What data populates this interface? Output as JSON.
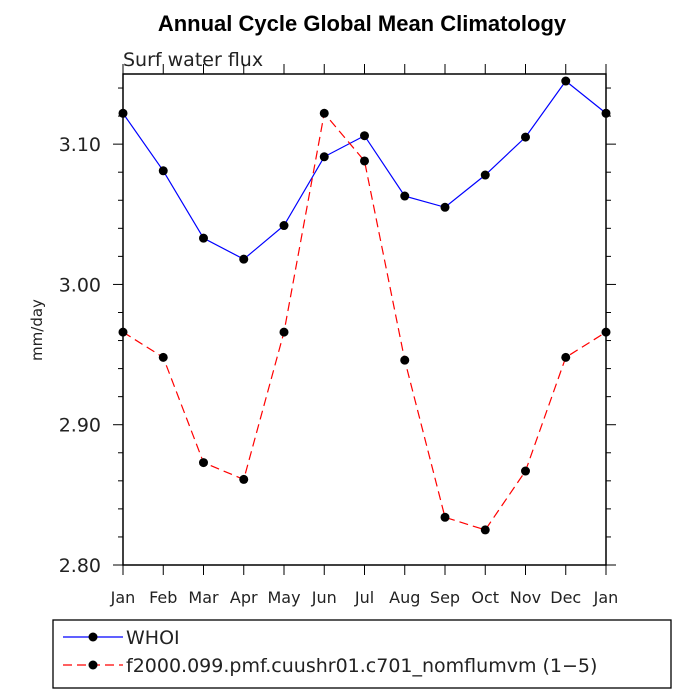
{
  "chart_data": {
    "type": "line",
    "title": "Annual Cycle Global Mean Climatology",
    "subtitle": "Surf water flux",
    "xlabel": "",
    "ylabel": "mm/day",
    "categories": [
      "Jan",
      "Feb",
      "Mar",
      "Apr",
      "May",
      "Jun",
      "Jul",
      "Aug",
      "Sep",
      "Oct",
      "Nov",
      "Dec",
      "Jan"
    ],
    "ylim": [
      2.8,
      3.15
    ],
    "yticks": [
      2.8,
      2.9,
      3.0,
      3.1
    ],
    "ytick_labels": [
      "2.80",
      "2.90",
      "3.00",
      "3.10"
    ],
    "series": [
      {
        "name": "WHOI",
        "color": "#0000ff",
        "dash": "solid",
        "values": [
          3.122,
          3.081,
          3.033,
          3.018,
          3.042,
          3.091,
          3.106,
          3.063,
          3.055,
          3.078,
          3.105,
          3.145,
          3.122
        ]
      },
      {
        "name": "f2000.099.pmf.cuushr01.c701_nomflumvm (1−5)",
        "color": "#ff0000",
        "dash": "dashed",
        "values": [
          2.966,
          2.948,
          2.873,
          2.861,
          2.966,
          3.122,
          3.088,
          2.946,
          2.834,
          2.825,
          2.867,
          2.948,
          2.966
        ]
      }
    ],
    "legend_position": "bottom"
  }
}
